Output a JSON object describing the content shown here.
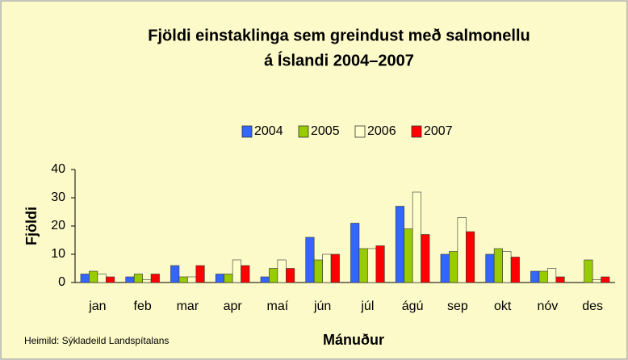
{
  "chart_data": {
    "type": "bar",
    "title": [
      "Fjöldi einstaklinga sem greindust með salmonellu",
      "á Íslandi 2004–2007"
    ],
    "x_label": "Mánuður",
    "y_label": "Fjöldi",
    "source": "Heimild: Sýkladeild Landspítalans",
    "categories": [
      "jan",
      "feb",
      "mar",
      "apr",
      "maí",
      "jún",
      "júl",
      "ágú",
      "sep",
      "okt",
      "nóv",
      "des"
    ],
    "series": [
      {
        "name": "2004",
        "color": "#3366ff",
        "values": [
          3,
          2,
          6,
          3,
          2,
          16,
          21,
          27,
          10,
          10,
          4,
          0
        ]
      },
      {
        "name": "2005",
        "color": "#99cc00",
        "values": [
          4,
          3,
          2,
          3,
          5,
          8,
          12,
          19,
          11,
          12,
          4,
          8
        ]
      },
      {
        "name": "2006",
        "color": "#ffffcc",
        "values": [
          3,
          1,
          2,
          8,
          8,
          10,
          12,
          32,
          23,
          11,
          5,
          1
        ]
      },
      {
        "name": "2007",
        "color": "#ff0000",
        "values": [
          2,
          3,
          6,
          6,
          5,
          10,
          13,
          17,
          18,
          9,
          2,
          2
        ]
      }
    ],
    "ylim": [
      0,
      40
    ],
    "yticks": [
      0,
      10,
      20,
      30,
      40
    ],
    "grid": false,
    "legend": "top"
  }
}
